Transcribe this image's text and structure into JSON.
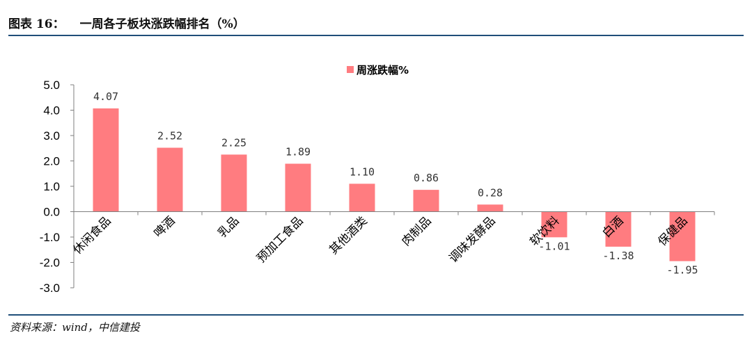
{
  "header": {
    "figure_number": "图表 16：",
    "figure_title": "一周各子板块涨跌幅排名（%）"
  },
  "footer": {
    "source": "资料来源：wind，中信建投"
  },
  "colors": {
    "bar": "#ff7c80",
    "rule": "#1f4e79",
    "axis": "#7f7f7f"
  },
  "chart_data": {
    "type": "bar",
    "categories": [
      "休闲食品",
      "啤酒",
      "乳品",
      "预加工食品",
      "其他酒类",
      "肉制品",
      "调味发酵品",
      "软饮料",
      "白酒",
      "保健品"
    ],
    "series": [
      {
        "name": "周涨跌幅%",
        "values": [
          4.07,
          2.52,
          2.25,
          1.89,
          1.1,
          0.86,
          0.28,
          -1.01,
          -1.38,
          -1.95
        ]
      }
    ],
    "data_labels": [
      "4.07",
      "2.52",
      "2.25",
      "1.89",
      "1.10",
      "0.86",
      "0.28",
      "-1.01",
      "-1.38",
      "-1.95"
    ],
    "yticks": [
      "5.0",
      "4.0",
      "3.0",
      "2.0",
      "1.0",
      "0.0",
      "-1.0",
      "-2.0",
      "-3.0"
    ],
    "ylim": [
      -3.0,
      5.0
    ],
    "grid": false,
    "legend": "top-center"
  }
}
